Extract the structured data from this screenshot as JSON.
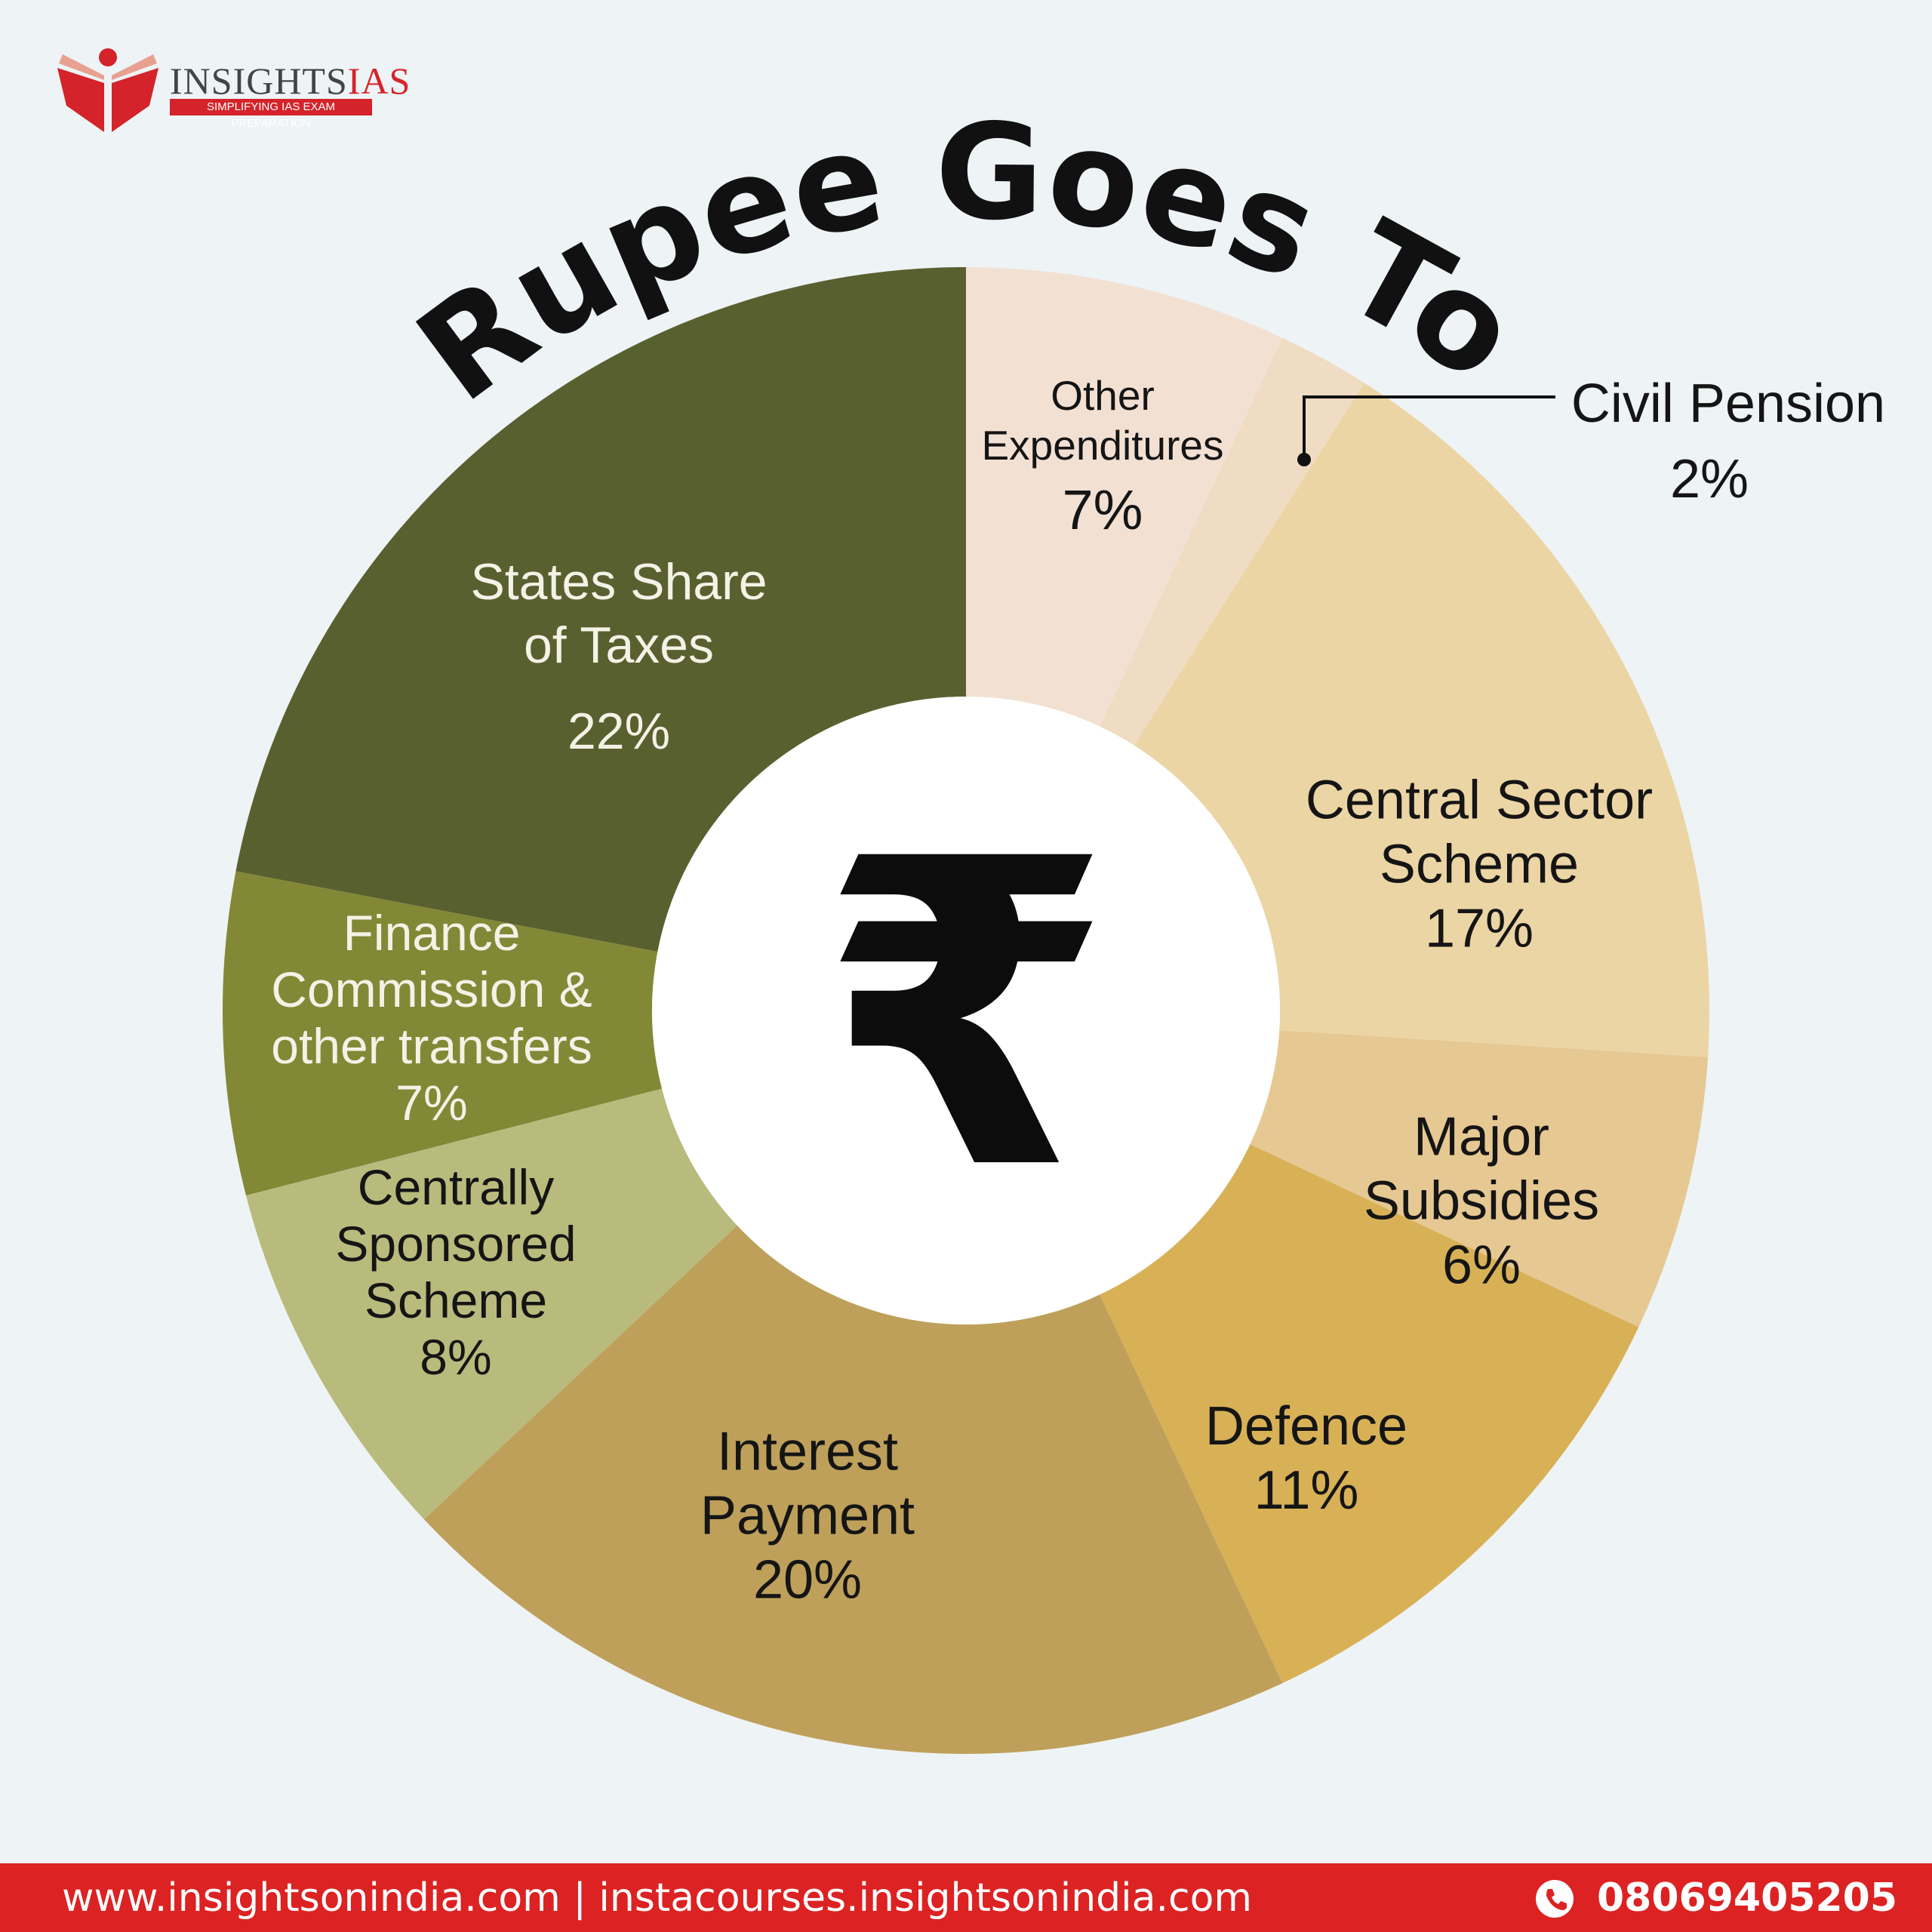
{
  "brand": {
    "logo_name": "INSIGHTS",
    "logo_accent": "IAS",
    "tagline": "SIMPLIFYING IAS EXAM PREPARATION",
    "color": "#dc2222"
  },
  "chart_data": {
    "type": "pie",
    "variant": "donut",
    "title": "Rupee Goes To",
    "center_symbol": "₹",
    "unit": "%",
    "slices": [
      {
        "label": "Other Expenditures",
        "value": 7,
        "value_label": "7%",
        "color": "#f2e1d3"
      },
      {
        "label": "Civil Pension",
        "value": 2,
        "value_label": "2%",
        "color": "#efdcc2"
      },
      {
        "label": "Central Sector Scheme",
        "value": 17,
        "value_label": "17%",
        "color": "#ecd5a4"
      },
      {
        "label": "Major Subsidies",
        "value": 6,
        "value_label": "6%",
        "color": "#e6c892"
      },
      {
        "label": "Defence",
        "value": 11,
        "value_label": "11%",
        "color": "#d8b157"
      },
      {
        "label": "Interest Payment",
        "value": 20,
        "value_label": "20%",
        "color": "#bea05a"
      },
      {
        "label": "Centrally Sponsored Scheme",
        "value": 8,
        "value_label": "8%",
        "color": "#b9bb7d"
      },
      {
        "label": "Finance Commission & other transfers",
        "value": 7,
        "value_label": "7%",
        "color": "#838836"
      },
      {
        "label": "States Share of Taxes",
        "value": 22,
        "value_label": "22%",
        "color": "#59602f"
      }
    ]
  },
  "footer": {
    "links": "www.insightsonindia.com  |  instacourses.insightsonindia.com",
    "phone_icon": "phone-icon",
    "phone": "08069405205"
  }
}
